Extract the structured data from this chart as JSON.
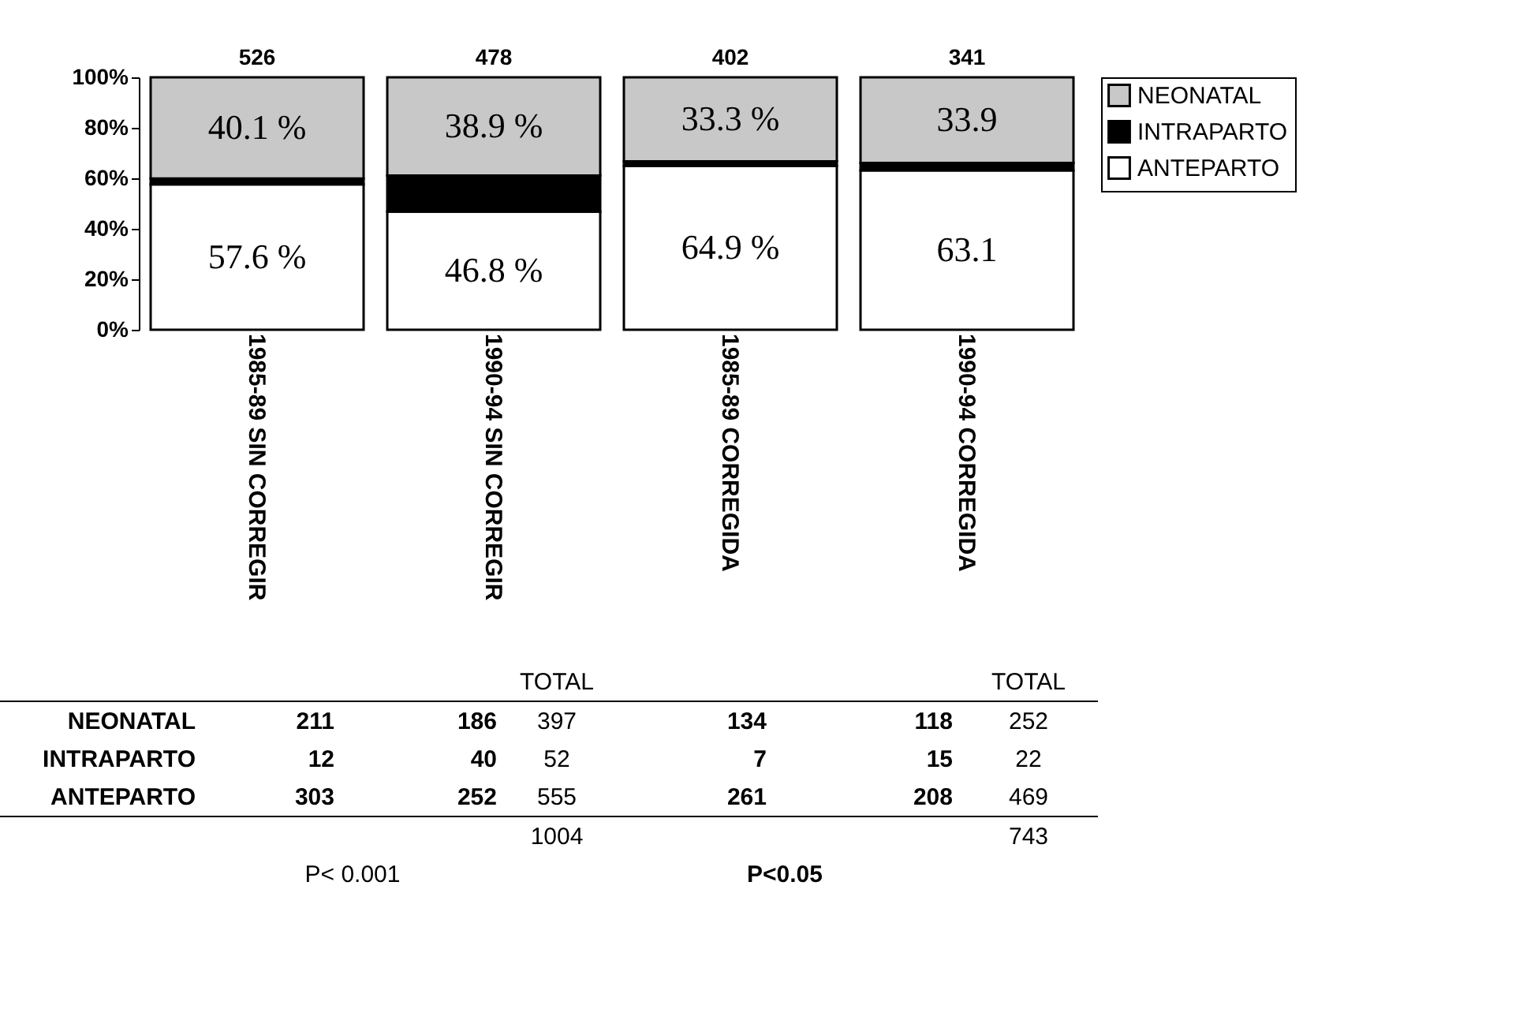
{
  "chart_data": {
    "type": "bar",
    "stacked": true,
    "categories": [
      "1985-89 SIN CORREGIR",
      "1990-94 SIN CORREGIR",
      "1985-89 CORREGIDA",
      "1990-94 CORREGIDA"
    ],
    "series": [
      {
        "name": "ANTEPARTO",
        "color": "#ffffff",
        "values": [
          57.6,
          46.8,
          64.9,
          63.1
        ],
        "value_labels": [
          "57.6 %",
          "46.8 %",
          "64.9 %",
          "63.1"
        ]
      },
      {
        "name": "INTRAPARTO",
        "color": "#000000",
        "values": [
          2.3,
          14.3,
          1.8,
          3.0
        ]
      },
      {
        "name": "NEONATAL",
        "color": "#c8c8c8",
        "values": [
          40.1,
          38.9,
          33.3,
          33.9
        ],
        "value_labels": [
          "40.1 %",
          "38.9 %",
          "33.3 %",
          "33.9"
        ]
      }
    ],
    "ylim": [
      0,
      100
    ],
    "yticks": [
      {
        "value": 0,
        "label": "0%"
      },
      {
        "value": 20,
        "label": "20%"
      },
      {
        "value": 40,
        "label": "40%"
      },
      {
        "value": 60,
        "label": "60%"
      },
      {
        "value": 80,
        "label": "80%"
      },
      {
        "value": 100,
        "label": "100%"
      }
    ],
    "legend": "right",
    "annotations": [
      "TOTAL",
      "TOTAL",
      "NEONATAL",
      "211",
      "186",
      "397",
      "134",
      "118",
      "252",
      "INTRAPARTO",
      "12",
      "40",
      "52",
      "7",
      "15",
      "22",
      "ANTEPARTO",
      "303",
      "252",
      "555",
      "261",
      "208",
      "469",
      "1004",
      "743",
      "P< 0.001",
      "P<0.05",
      {
        "text": "526",
        "x": "1985-89 SIN CORREGIR",
        "y": 100
      },
      {
        "text": "478",
        "x": "1990-94 SIN CORREGIR",
        "y": 100
      },
      {
        "text": "402",
        "x": "1985-89 CORREGIDA",
        "y": 100
      },
      {
        "text": "341",
        "x": "1990-94 CORREGIDA",
        "y": 100
      }
    ]
  }
}
